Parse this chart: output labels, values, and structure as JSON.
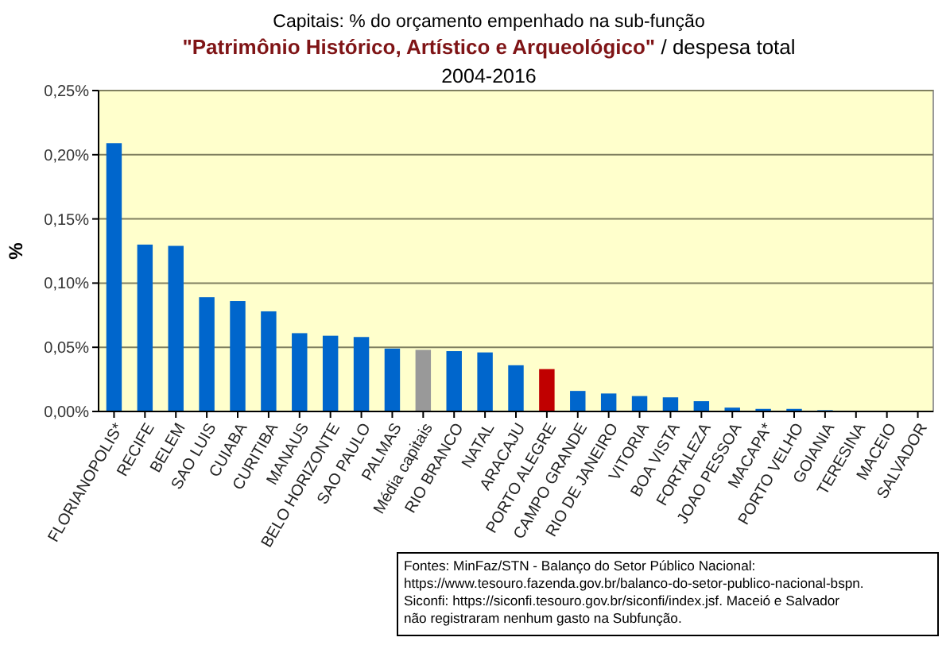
{
  "chart_data": {
    "type": "bar",
    "title": "Capitais: % do orçamento empenhado na sub-função",
    "subtitle": "\"Patrimônio Histórico, Artístico e Arqueológico\" / despesa total",
    "ylabel": "%",
    "categories": [
      "FLORIANOPOLIS*",
      "RECIFE",
      "BELEM",
      "SAO LUIS",
      "CUIABA",
      "CURITIBA",
      "MANAUS",
      "BELO HORIZONTE",
      "SAO PAULO",
      "PALMAS",
      "Média capitais",
      "RIO BRANCO",
      "NATAL",
      "ARACAJU",
      "PORTO ALEGRE",
      "CAMPO GRANDE",
      "RIO DE JANEIRO",
      "VITORIA",
      "BOA VISTA",
      "FORTALEZA",
      "JOAO PESSOA",
      "MACAPA*",
      "PORTO VELHO",
      "GOIANIA",
      "TERESINA",
      "MACEIO",
      "SALVADOR"
    ],
    "values": [
      0.209,
      0.13,
      0.129,
      0.089,
      0.086,
      0.078,
      0.061,
      0.059,
      0.058,
      0.049,
      0.048,
      0.047,
      0.046,
      0.036,
      0.033,
      0.016,
      0.014,
      0.012,
      0.011,
      0.008,
      0.003,
      0.002,
      0.002,
      0.001,
      0,
      0,
      0
    ],
    "colors": [
      "#0066cc",
      "#0066cc",
      "#0066cc",
      "#0066cc",
      "#0066cc",
      "#0066cc",
      "#0066cc",
      "#0066cc",
      "#0066cc",
      "#0066cc",
      "#999999",
      "#0066cc",
      "#0066cc",
      "#0066cc",
      "#c00000",
      "#0066cc",
      "#0066cc",
      "#0066cc",
      "#0066cc",
      "#0066cc",
      "#0066cc",
      "#0066cc",
      "#0066cc",
      "#0066cc",
      "#0066cc",
      "#0066cc",
      "#0066cc"
    ],
    "ylim": [
      0,
      0.25
    ],
    "yticks": [
      {
        "value": 0,
        "label": "0,00%"
      },
      {
        "value": 0.05,
        "label": "0,05%"
      },
      {
        "value": 0.1,
        "label": "0,10%"
      },
      {
        "value": 0.15,
        "label": "0,15%"
      },
      {
        "value": 0.2,
        "label": "0,20%"
      },
      {
        "value": 0.25,
        "label": "0,25%"
      }
    ],
    "grid": "y",
    "annotations": [
      "2004-2016",
      "Fontes: MinFaz/STN - Balanço do Setor Público Nacional: https://www.tesouro.fazenda.gov.br/balanco-do-setor-publico-nacional-bspn. Siconfi: https://siconfi.tesouro.gov.br/siconfi/index.jsf. Maceió e Salvador não registraram nenhum gasto na Subfunção."
    ]
  }
}
